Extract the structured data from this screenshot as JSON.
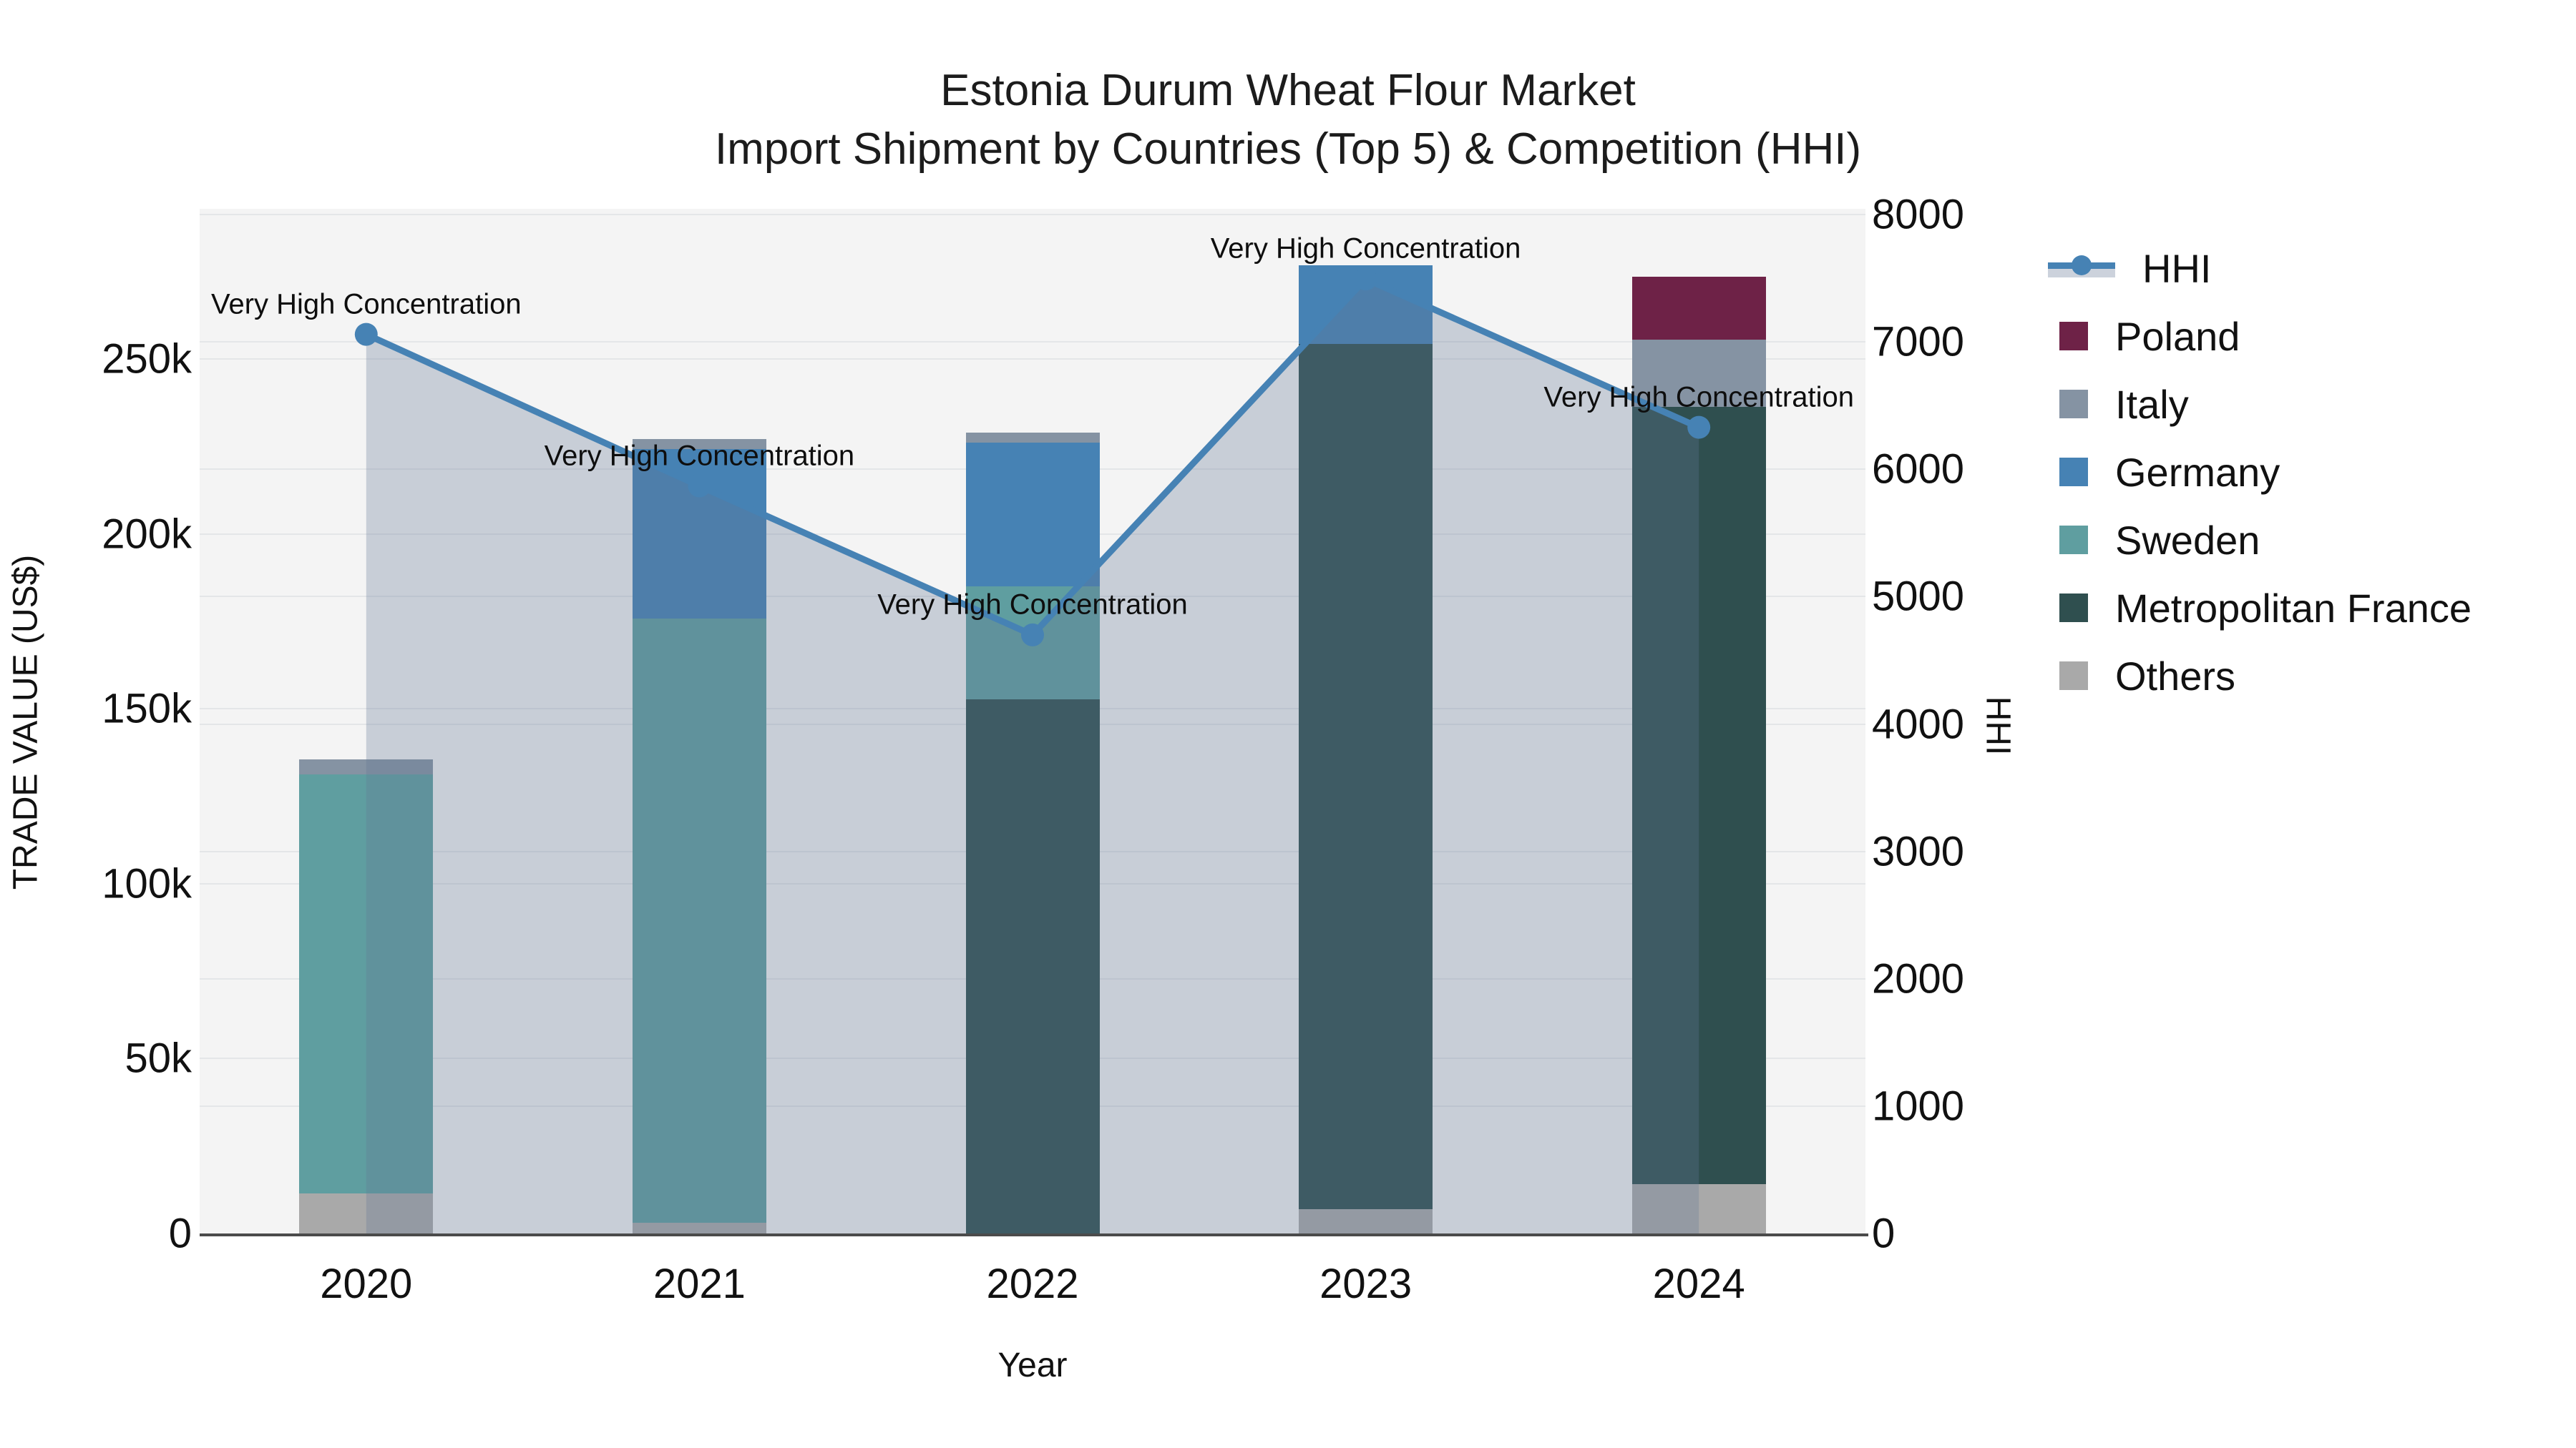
{
  "title": {
    "line1": "Estonia Durum Wheat Flour Market",
    "line2": "Import Shipment by Countries (Top 5) & Competition (HHI)"
  },
  "axes": {
    "x": {
      "title": "Year",
      "categories": [
        "2020",
        "2021",
        "2022",
        "2023",
        "2024"
      ]
    },
    "y_left": {
      "title": "TRADE VALUE (US$)",
      "tick_labels": [
        "0",
        "50k",
        "100k",
        "150k",
        "200k",
        "250k"
      ],
      "tick_values": [
        0,
        50000,
        100000,
        150000,
        200000,
        250000
      ],
      "range": [
        0,
        293000
      ]
    },
    "y_right": {
      "title": "HHI",
      "tick_labels": [
        "0",
        "1000",
        "2000",
        "3000",
        "4000",
        "5000",
        "6000",
        "7000",
        "8000"
      ],
      "tick_values": [
        0,
        1000,
        2000,
        3000,
        4000,
        5000,
        6000,
        7000,
        8000
      ],
      "range": [
        0,
        8046
      ]
    }
  },
  "chart_data": {
    "type": "bar+line",
    "categories": [
      2020,
      2021,
      2022,
      2023,
      2024
    ],
    "stack_order_bottom_to_top": [
      "Others",
      "Metropolitan France",
      "Sweden",
      "Germany",
      "Italy",
      "Poland"
    ],
    "series": [
      {
        "name": "Poland",
        "color": "#6e2247",
        "values": [
          0,
          0,
          0,
          0,
          18000
        ]
      },
      {
        "name": "Italy",
        "color": "#8593a3",
        "values": [
          4300,
          2900,
          2900,
          0,
          19200
        ]
      },
      {
        "name": "Germany",
        "color": "#4682b4",
        "values": [
          0,
          48300,
          41100,
          22500,
          0
        ]
      },
      {
        "name": "Sweden",
        "color": "#5f9ea0",
        "values": [
          119800,
          172800,
          32300,
          0,
          0
        ]
      },
      {
        "name": "Metropolitan France",
        "color": "#2f4f4f",
        "values": [
          0,
          0,
          152800,
          247400,
          222200
        ]
      },
      {
        "name": "Others",
        "color": "#a9a9a9",
        "values": [
          11500,
          3100,
          0,
          7000,
          14100
        ]
      }
    ],
    "line_series": {
      "name": "HHI",
      "axis": "right",
      "color": "#4682b4",
      "fill_color": "rgba(100,120,150,0.30)",
      "values": [
        7060,
        5870,
        4700,
        7495,
        6330
      ]
    },
    "annotations": [
      {
        "x": "2020",
        "text": "Very High Concentration"
      },
      {
        "x": "2021",
        "text": "Very High Concentration"
      },
      {
        "x": "2022",
        "text": "Very High Concentration"
      },
      {
        "x": "2023",
        "text": "Very High Concentration"
      },
      {
        "x": "2024",
        "text": "Very High Concentration"
      }
    ]
  },
  "legend": {
    "items": [
      {
        "label": "HHI",
        "type": "line",
        "color": "#4682b4",
        "band": "#ccd2dc"
      },
      {
        "label": "Poland",
        "type": "swatch",
        "color": "#6e2247"
      },
      {
        "label": "Italy",
        "type": "swatch",
        "color": "#8593a3"
      },
      {
        "label": "Germany",
        "type": "swatch",
        "color": "#4682b4"
      },
      {
        "label": "Sweden",
        "type": "swatch",
        "color": "#5f9ea0"
      },
      {
        "label": "Metropolitan France",
        "type": "swatch",
        "color": "#2f4f4f"
      },
      {
        "label": "Others",
        "type": "swatch",
        "color": "#a9a9a9"
      }
    ]
  },
  "style_colors": {
    "plot_background": "#f4f4f4",
    "gridline": "#e4e6e8",
    "axis_line": "#4b4b4b",
    "text": "#111111"
  }
}
